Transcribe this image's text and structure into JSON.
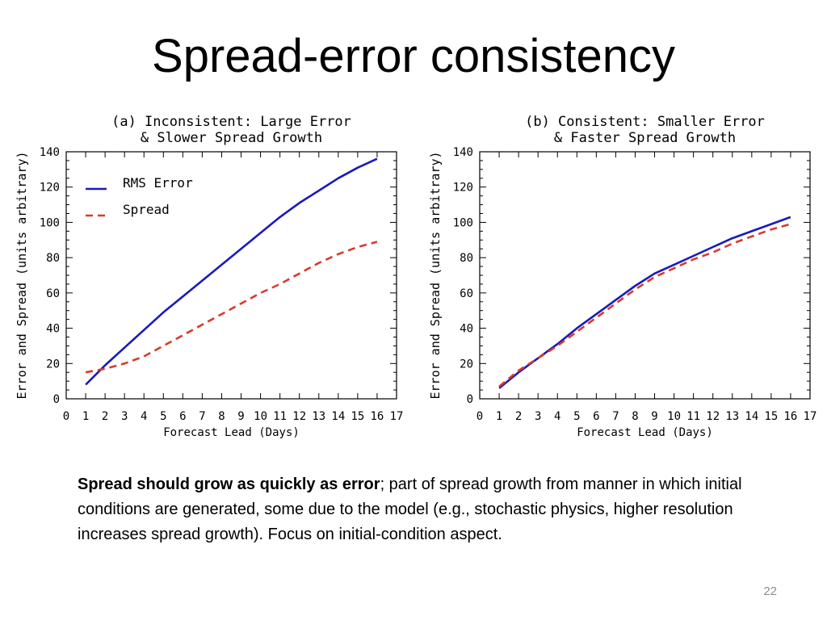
{
  "slide": {
    "title": "Spread-error consistency",
    "caption_bold": "Spread should grow as quickly as error",
    "caption_rest": "; part of spread growth from manner in which initial conditions are generated,  some due to the model (e.g., stochastic physics, higher resolution increases spread growth). Focus on initial-condition aspect.",
    "page_number": "22"
  },
  "colors": {
    "rms_error": "#1a1ab8",
    "spread": "#d93a2b",
    "axis": "#000000"
  },
  "chart_data": [
    {
      "type": "line",
      "title_lines": [
        "(a) Inconsistent: Large Error",
        "& Slower Spread Growth"
      ],
      "xlabel": "Forecast Lead (Days)",
      "ylabel": "Error and Spread (units arbitrary)",
      "xlim": [
        0,
        17
      ],
      "ylim": [
        0,
        140
      ],
      "x_ticks": [
        0,
        1,
        2,
        3,
        4,
        5,
        6,
        7,
        8,
        9,
        10,
        11,
        12,
        13,
        14,
        15,
        16,
        17
      ],
      "y_ticks": [
        0,
        20,
        40,
        60,
        80,
        100,
        120,
        140
      ],
      "legend": {
        "position": "top-left",
        "entries": [
          "RMS Error",
          "Spread"
        ]
      },
      "x": [
        1,
        2,
        3,
        4,
        5,
        6,
        7,
        8,
        9,
        10,
        11,
        12,
        13,
        14,
        15,
        16
      ],
      "series": [
        {
          "name": "RMS Error",
          "style": "solid",
          "color": "#1a1ab8",
          "values": [
            8,
            19,
            29,
            39,
            49,
            58,
            67,
            76,
            85,
            94,
            103,
            111,
            118,
            125,
            131,
            136
          ]
        },
        {
          "name": "Spread",
          "style": "dashed",
          "color": "#d93a2b",
          "values": [
            15,
            17,
            20,
            24,
            30,
            36,
            42,
            48,
            54,
            60,
            65,
            71,
            77,
            82,
            86,
            89
          ]
        }
      ]
    },
    {
      "type": "line",
      "title_lines": [
        "(b) Consistent: Smaller Error",
        "& Faster Spread Growth"
      ],
      "xlabel": "Forecast Lead (Days)",
      "ylabel": "Error and Spread (units arbitrary)",
      "xlim": [
        0,
        17
      ],
      "ylim": [
        0,
        140
      ],
      "x_ticks": [
        0,
        1,
        2,
        3,
        4,
        5,
        6,
        7,
        8,
        9,
        10,
        11,
        12,
        13,
        14,
        15,
        16,
        17
      ],
      "y_ticks": [
        0,
        20,
        40,
        60,
        80,
        100,
        120,
        140
      ],
      "x": [
        1,
        2,
        3,
        4,
        5,
        6,
        7,
        8,
        9,
        10,
        11,
        12,
        13,
        14,
        15,
        16
      ],
      "series": [
        {
          "name": "RMS Error",
          "style": "solid",
          "color": "#1a1ab8",
          "values": [
            6,
            15,
            23,
            31,
            40,
            48,
            56,
            64,
            71,
            76,
            81,
            86,
            91,
            95,
            99,
            103
          ]
        },
        {
          "name": "Spread",
          "style": "dashed",
          "color": "#d93a2b",
          "values": [
            7,
            16,
            23,
            30,
            38,
            46,
            54,
            62,
            69,
            74,
            79,
            83,
            88,
            92,
            96,
            99
          ]
        }
      ]
    }
  ]
}
